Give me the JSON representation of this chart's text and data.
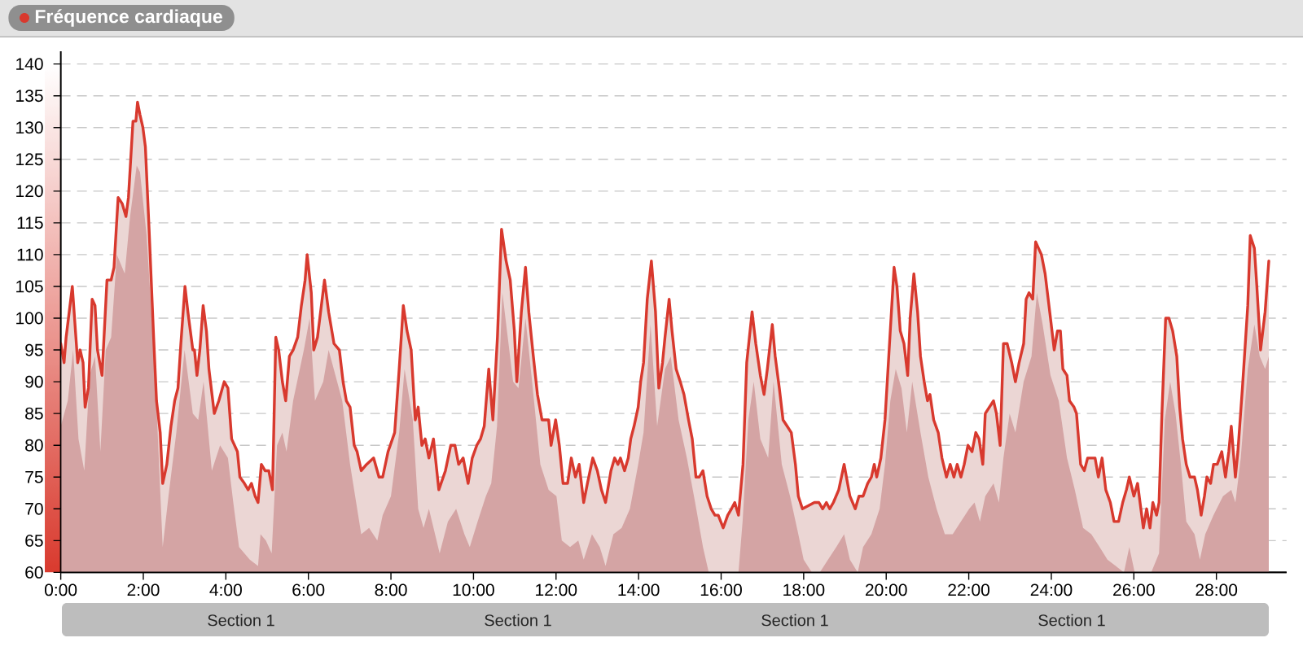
{
  "chart_data": {
    "type": "area",
    "title": "Fréquence cardiaque",
    "annotations": [
      "Section 1",
      "Section 1",
      "Section 1",
      "Section 1"
    ],
    "series": [
      {
        "color": "#d8392e",
        "line_style": "solid",
        "x": [
          0,
          0.08,
          0.13,
          0.28,
          0.41,
          0.47,
          0.54,
          0.59,
          0.67,
          0.76,
          0.83,
          0.89,
          1.0,
          1.12,
          1.22,
          1.29,
          1.39,
          1.49,
          1.58,
          1.64,
          1.75,
          1.82,
          1.86,
          1.92,
          1.99,
          2.05,
          2.14,
          2.25,
          2.32,
          2.41,
          2.47,
          2.57,
          2.67,
          2.76,
          2.84,
          2.91,
          3.01,
          3.08,
          3.2,
          3.24,
          3.3,
          3.37,
          3.45,
          3.53,
          3.59,
          3.72,
          3.83,
          3.96,
          4.05,
          4.14,
          4.28,
          4.34,
          4.45,
          4.54,
          4.62,
          4.71,
          4.78,
          4.86,
          4.95,
          5.04,
          5.13,
          5.21,
          5.28,
          5.37,
          5.45,
          5.54,
          5.63,
          5.74,
          5.83,
          5.92,
          5.97,
          6.07,
          6.13,
          6.22,
          6.39,
          6.49,
          6.62,
          6.75,
          6.84,
          6.92,
          7.01,
          7.11,
          7.18,
          7.28,
          7.41,
          7.58,
          7.71,
          7.8,
          7.93,
          8.09,
          8.2,
          8.3,
          8.39,
          8.49,
          8.59,
          8.66,
          8.75,
          8.83,
          8.92,
          9.03,
          9.16,
          9.32,
          9.45,
          9.55,
          9.64,
          9.75,
          9.87,
          9.97,
          10.08,
          10.17,
          10.26,
          10.37,
          10.47,
          10.58,
          10.68,
          10.79,
          10.89,
          10.99,
          11.05,
          11.16,
          11.26,
          11.34,
          11.45,
          11.55,
          11.66,
          11.75,
          11.82,
          11.88,
          11.99,
          12.08,
          12.17,
          12.28,
          12.37,
          12.47,
          12.56,
          12.67,
          12.76,
          12.89,
          13.0,
          13.1,
          13.2,
          13.33,
          13.42,
          13.5,
          13.56,
          13.66,
          13.75,
          13.81,
          13.89,
          13.99,
          14.05,
          14.12,
          14.21,
          14.31,
          14.41,
          14.49,
          14.58,
          14.64,
          14.74,
          14.81,
          14.91,
          15.01,
          15.1,
          15.21,
          15.3,
          15.39,
          15.47,
          15.56,
          15.66,
          15.76,
          15.85,
          15.93,
          16.05,
          16.16,
          16.25,
          16.33,
          16.42,
          16.53,
          16.62,
          16.75,
          16.84,
          16.95,
          17.04,
          17.12,
          17.24,
          17.31,
          17.41,
          17.5,
          17.6,
          17.7,
          17.8,
          17.87,
          17.97,
          18.26,
          18.37,
          18.46,
          18.55,
          18.63,
          18.72,
          18.85,
          18.98,
          19.12,
          19.25,
          19.34,
          19.44,
          19.55,
          19.64,
          19.71,
          19.77,
          19.87,
          19.97,
          20.08,
          20.19,
          20.26,
          20.34,
          20.43,
          20.52,
          20.58,
          20.67,
          20.76,
          20.83,
          20.92,
          21.0,
          21.06,
          21.15,
          21.26,
          21.35,
          21.46,
          21.55,
          21.64,
          21.72,
          21.81,
          21.89,
          21.98,
          22.08,
          22.17,
          22.25,
          22.34,
          22.4,
          22.5,
          22.6,
          22.67,
          22.76,
          22.84,
          22.93,
          23.04,
          23.13,
          23.22,
          23.33,
          23.39,
          23.46,
          23.55,
          23.62,
          23.69,
          23.76,
          23.85,
          23.98,
          24.07,
          24.15,
          24.22,
          24.28,
          24.38,
          24.44,
          24.55,
          24.61,
          24.71,
          24.8,
          24.88,
          24.97,
          25.06,
          25.14,
          25.23,
          25.32,
          25.43,
          25.52,
          25.63,
          25.73,
          25.82,
          25.89,
          26.0,
          26.09,
          26.15,
          26.23,
          26.31,
          26.39,
          26.46,
          26.55,
          26.61,
          26.68,
          26.77,
          26.85,
          26.94,
          27.04,
          27.11,
          27.18,
          27.27,
          27.36,
          27.47,
          27.54,
          27.63,
          27.71,
          27.77,
          27.86,
          27.93,
          28.02,
          28.13,
          28.22,
          28.3,
          28.36,
          28.46,
          28.52,
          28.63,
          28.68,
          28.76,
          28.82,
          28.92,
          28.98,
          29.07,
          29.18,
          29.27
        ],
        "values": [
          96,
          93,
          97,
          105,
          93,
          95,
          93,
          86,
          89,
          103,
          102,
          95,
          91,
          106,
          106,
          108,
          119,
          118,
          116,
          119,
          131,
          131,
          134,
          132,
          130,
          127,
          114,
          97,
          87,
          82,
          74,
          77,
          83,
          87,
          89,
          96,
          105,
          101,
          95,
          95,
          91,
          95,
          102,
          98,
          92,
          85,
          87,
          90,
          89,
          81,
          79,
          75,
          74,
          73,
          74,
          72,
          71,
          77,
          76,
          76,
          73,
          97,
          95,
          90,
          87,
          94,
          95,
          97,
          102,
          106,
          110,
          104,
          95,
          97,
          106,
          101,
          96,
          95,
          90,
          87,
          86,
          80,
          79,
          76,
          77,
          78,
          75,
          75,
          79,
          82,
          92,
          102,
          98,
          95,
          84,
          86,
          80,
          81,
          78,
          81,
          73,
          76,
          80,
          80,
          77,
          78,
          74,
          78,
          80,
          81,
          83,
          92,
          84,
          97,
          114,
          109,
          106,
          98,
          90,
          101,
          108,
          101,
          94,
          88,
          84,
          84,
          84,
          80,
          84,
          80,
          74,
          74,
          78,
          75,
          77,
          71,
          74,
          78,
          76,
          73,
          71,
          76,
          78,
          77,
          78,
          76,
          78,
          81,
          83,
          86,
          90,
          93,
          103,
          109,
          101,
          89,
          93,
          97,
          103,
          98,
          92,
          90,
          88,
          84,
          81,
          75,
          75,
          76,
          72,
          70,
          69,
          69,
          67,
          69,
          70,
          71,
          69,
          77,
          93,
          101,
          96,
          91,
          88,
          92,
          99,
          94,
          89,
          84,
          83,
          82,
          77,
          72,
          70,
          71,
          71,
          70,
          71,
          70,
          71,
          73,
          77,
          72,
          70,
          72,
          72,
          74,
          75,
          77,
          75,
          78,
          84,
          96,
          108,
          105,
          98,
          96,
          91,
          100,
          107,
          101,
          94,
          90,
          87,
          88,
          84,
          82,
          78,
          75,
          77,
          75,
          77,
          75,
          77,
          80,
          79,
          82,
          81,
          77,
          85,
          86,
          87,
          85,
          80,
          96,
          96,
          93,
          90,
          93,
          96,
          103,
          104,
          103,
          112,
          111,
          110,
          107,
          100,
          95,
          98,
          98,
          92,
          91,
          87,
          86,
          85,
          77,
          76,
          78,
          78,
          78,
          75,
          78,
          73,
          71,
          68,
          68,
          71,
          73,
          75,
          72,
          74,
          71,
          67,
          70,
          67,
          71,
          69,
          71,
          85,
          100,
          100,
          98,
          94,
          86,
          81,
          77,
          75,
          75,
          73,
          69,
          72,
          75,
          74,
          77,
          77,
          79,
          75,
          79,
          83,
          75,
          79,
          89,
          94,
          102,
          113,
          111,
          105,
          95,
          101,
          109
        ]
      },
      {
        "color": "#d4a4a4",
        "x": [
          0,
          0.17,
          0.3,
          0.43,
          0.57,
          0.7,
          0.83,
          0.96,
          1.09,
          1.22,
          1.36,
          1.55,
          1.68,
          1.84,
          1.92,
          2.08,
          2.28,
          2.47,
          2.61,
          2.8,
          3.0,
          3.2,
          3.33,
          3.46,
          3.66,
          3.86,
          4.05,
          4.18,
          4.32,
          4.45,
          4.58,
          4.78,
          4.84,
          4.97,
          5.11,
          5.24,
          5.37,
          5.47,
          5.63,
          5.89,
          6.03,
          6.16,
          6.36,
          6.49,
          6.82,
          7.01,
          7.28,
          7.47,
          7.67,
          7.8,
          8.0,
          8.2,
          8.33,
          8.53,
          8.66,
          8.79,
          8.92,
          9.18,
          9.38,
          9.58,
          9.78,
          9.91,
          10.1,
          10.3,
          10.43,
          10.57,
          10.7,
          10.83,
          10.96,
          11.09,
          11.26,
          11.42,
          11.62,
          11.82,
          12.01,
          12.14,
          12.34,
          12.54,
          12.67,
          12.87,
          13.06,
          13.2,
          13.39,
          13.59,
          13.79,
          13.99,
          14.12,
          14.29,
          14.45,
          14.64,
          14.78,
          14.97,
          15.17,
          15.37,
          15.56,
          15.7,
          15.89,
          16.42,
          16.52,
          16.66,
          16.79,
          16.95,
          17.14,
          17.27,
          17.47,
          17.67,
          17.87,
          18.0,
          18.2,
          18.39,
          18.59,
          18.79,
          18.98,
          19.12,
          19.31,
          19.44,
          19.64,
          19.84,
          19.97,
          20.1,
          20.23,
          20.37,
          20.5,
          20.63,
          20.83,
          21.02,
          21.22,
          21.42,
          21.61,
          21.81,
          22.01,
          22.14,
          22.27,
          22.4,
          22.6,
          22.73,
          22.84,
          22.99,
          23.13,
          23.33,
          23.52,
          23.65,
          23.79,
          23.98,
          24.18,
          24.38,
          24.57,
          24.77,
          24.97,
          25.17,
          25.36,
          25.56,
          25.76,
          25.89,
          26.02,
          26.42,
          26.61,
          26.75,
          26.88,
          27.01,
          27.14,
          27.27,
          27.47,
          27.6,
          27.73,
          27.93,
          28.16,
          28.36,
          28.46,
          28.59,
          28.76,
          28.92,
          29.05,
          29.18,
          29.27
        ],
        "values": [
          83,
          87,
          95,
          81,
          76,
          91,
          94,
          79,
          95,
          97,
          110,
          107,
          116,
          124,
          123,
          113,
          92,
          64,
          72,
          82,
          95,
          85,
          84,
          90,
          76,
          80,
          78,
          71,
          64,
          63,
          62,
          61,
          66,
          65,
          63,
          80,
          82,
          79,
          87,
          95,
          100,
          87,
          90,
          95,
          87,
          77,
          66,
          67,
          65,
          69,
          72,
          82,
          92,
          84,
          70,
          67,
          70,
          63,
          68,
          70,
          66,
          64,
          68,
          72,
          74,
          83,
          104,
          97,
          90,
          89,
          100,
          90,
          77,
          73,
          72,
          65,
          64,
          65,
          62,
          66,
          64,
          61,
          66,
          67,
          70,
          77,
          82,
          99,
          83,
          92,
          94,
          84,
          78,
          71,
          64,
          60,
          60,
          60,
          68,
          84,
          90,
          81,
          78,
          90,
          77,
          72,
          66,
          62,
          60,
          60,
          62,
          64,
          66,
          62,
          60,
          64,
          66,
          70,
          77,
          87,
          92,
          89,
          82,
          90,
          82,
          75,
          70,
          66,
          66,
          68,
          70,
          71,
          68,
          72,
          74,
          71,
          78,
          85,
          82,
          90,
          94,
          104,
          99,
          91,
          87,
          78,
          73,
          67,
          66,
          64,
          62,
          61,
          60,
          64,
          60,
          60,
          63,
          84,
          90,
          85,
          77,
          68,
          66,
          62,
          66,
          69,
          72,
          73,
          71,
          78,
          92,
          99,
          94,
          92,
          94
        ]
      }
    ],
    "xlim": [
      0,
      29.7
    ],
    "xticks": [
      {
        "value": 0,
        "label": "0:00"
      },
      {
        "value": 2,
        "label": "2:00"
      },
      {
        "value": 4,
        "label": "4:00"
      },
      {
        "value": 6,
        "label": "6:00"
      },
      {
        "value": 8,
        "label": "8:00"
      },
      {
        "value": 10,
        "label": "10:00"
      },
      {
        "value": 12,
        "label": "12:00"
      },
      {
        "value": 14,
        "label": "14:00"
      },
      {
        "value": 16,
        "label": "16:00"
      },
      {
        "value": 18,
        "label": "18:00"
      },
      {
        "value": 20,
        "label": "20:00"
      },
      {
        "value": 22,
        "label": "22:00"
      },
      {
        "value": 24,
        "label": "24:00"
      },
      {
        "value": 26,
        "label": "26:00"
      },
      {
        "value": 28,
        "label": "28:00"
      }
    ],
    "ylim": [
      60,
      142
    ],
    "yticks": [
      60,
      65,
      70,
      75,
      80,
      85,
      90,
      95,
      100,
      105,
      110,
      115,
      120,
      125,
      130,
      135,
      140
    ],
    "grid": "y"
  }
}
